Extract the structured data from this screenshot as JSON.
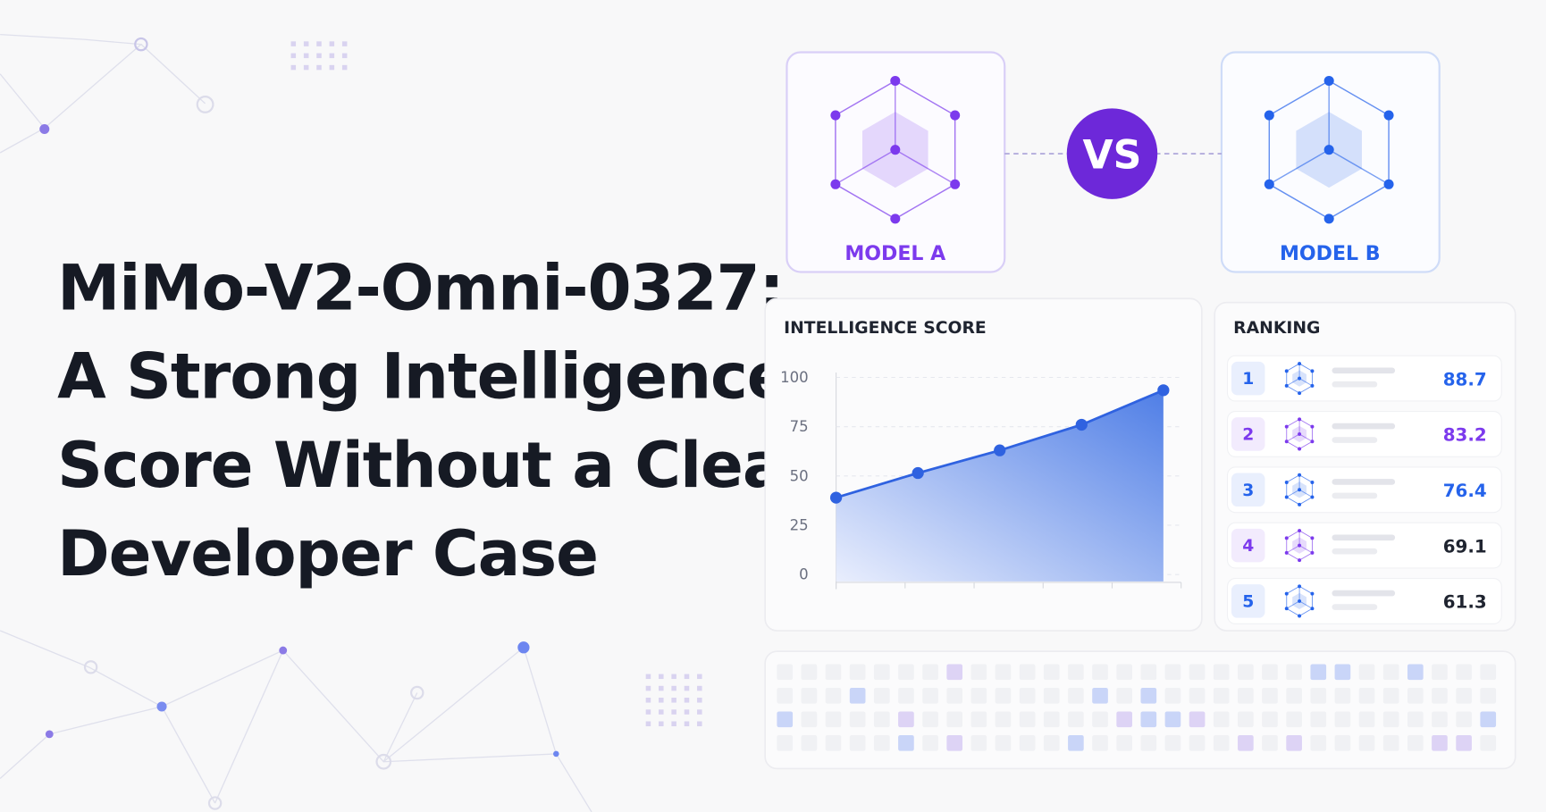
{
  "title_lines": [
    "MiMo-V2-Omni-0327:",
    "A Strong Intelligence",
    "Score Without a Clear",
    "Developer Case"
  ],
  "models": [
    {
      "label": "MODEL A",
      "color": "#7c3aed"
    },
    {
      "label": "MODEL B",
      "color": "#2563eb"
    }
  ],
  "vs": "VS",
  "chart_data": {
    "type": "area",
    "title": "INTELLIGENCE SCORE",
    "categories": [
      null,
      null,
      null,
      null,
      null
    ],
    "values": [
      39,
      51.5,
      63,
      76,
      93.5
    ],
    "ylim": [
      0,
      100
    ],
    "yticks": [
      0,
      25,
      50,
      75,
      100
    ],
    "color": "#2f62e0",
    "grid": true
  },
  "ranking": {
    "title": "RANKING",
    "rows": [
      {
        "rank": 1,
        "score": 88.7,
        "color": "#2563eb",
        "score_color": "#2563eb"
      },
      {
        "rank": 2,
        "score": 83.2,
        "color": "#7c3aed",
        "score_color": "#7c3aed"
      },
      {
        "rank": 3,
        "score": 76.4,
        "color": "#2563eb",
        "score_color": "#2563eb"
      },
      {
        "rank": 4,
        "score": 69.1,
        "color": "#7c3aed",
        "score_color": "#1f2430"
      },
      {
        "rank": 5,
        "score": 61.3,
        "color": "#2563eb",
        "score_color": "#1f2430"
      }
    ]
  }
}
